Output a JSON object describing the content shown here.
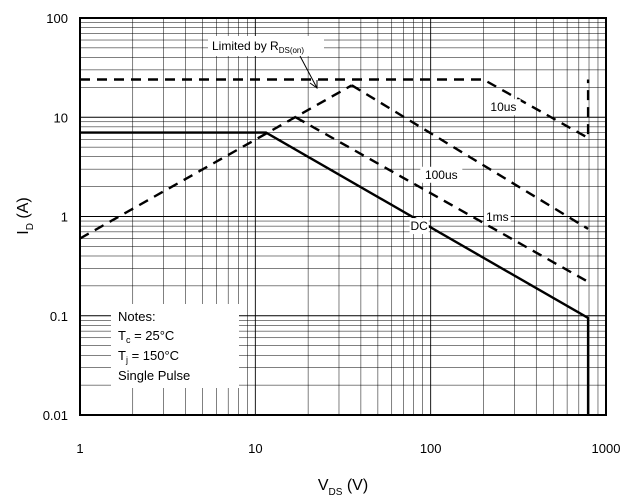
{
  "chart_data": {
    "type": "line",
    "title": "",
    "x_scale": "log",
    "y_scale": "log",
    "xlim": [
      1,
      1000
    ],
    "ylim": [
      0.01,
      100
    ],
    "grid": true,
    "x_ticks": [
      "1",
      "10",
      "100",
      "1000"
    ],
    "y_ticks": [
      "0.01",
      "0.1",
      "1",
      "10",
      "100"
    ],
    "xlabel": {
      "main": "V",
      "sub": "DS",
      "unit": " (V)"
    },
    "ylabel": {
      "main": "I",
      "sub": "D",
      "unit": " (A)"
    },
    "limit_label": {
      "main": "Limited by R",
      "sub": "DS(on)"
    },
    "series": [
      {
        "name": "Limited by RDS(on)",
        "style": "dashed",
        "x": [
          1,
          35.5
        ],
        "y": [
          0.6,
          21
        ]
      },
      {
        "name": "10us",
        "style": "dashed",
        "x": [
          1,
          200,
          790,
          790
        ],
        "y": [
          24,
          24,
          6.2,
          24
        ]
      },
      {
        "name": "100us",
        "style": "dashed",
        "x": [
          35.5,
          790
        ],
        "y": [
          21,
          0.75
        ]
      },
      {
        "name": "1ms",
        "style": "dashed",
        "x": [
          17,
          790
        ],
        "y": [
          10,
          0.22
        ]
      },
      {
        "name": "DC",
        "style": "solid",
        "x": [
          1,
          11.5,
          790,
          790
        ],
        "y": [
          7,
          7,
          0.095,
          0.01
        ]
      }
    ],
    "curve_labels": [
      {
        "text": "10us",
        "x": 260,
        "y": 11.5
      },
      {
        "text": "100us",
        "x": 115,
        "y": 2.4
      },
      {
        "text": "1ms",
        "x": 240,
        "y": 0.9
      },
      {
        "text": "DC",
        "x": 86,
        "y": 0.73
      }
    ],
    "notes": {
      "title": "Notes:",
      "lines": [
        {
          "main": "T",
          "sub": "c",
          "rest": " = 25°C"
        },
        {
          "main": "T",
          "sub": "j",
          "rest": " = 150°C"
        },
        {
          "main": "Single Pulse",
          "sub": "",
          "rest": ""
        }
      ]
    }
  }
}
